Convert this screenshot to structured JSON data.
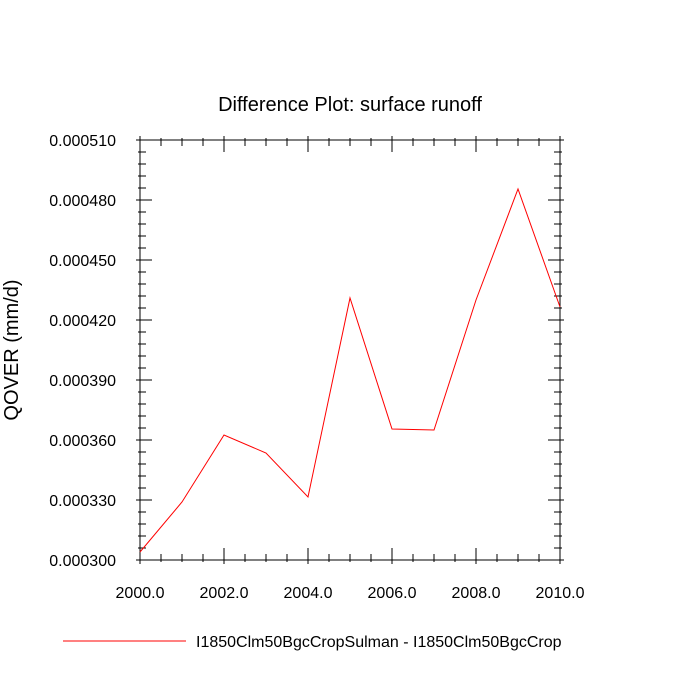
{
  "chart_data": {
    "type": "line",
    "title": "Difference Plot: surface runoff",
    "xlabel": "",
    "ylabel": "QOVER  (mm/d)",
    "xlim": [
      2000.0,
      2010.0
    ],
    "ylim": [
      0.0003,
      0.00051
    ],
    "x_ticks": [
      2000.0,
      2002.0,
      2004.0,
      2006.0,
      2008.0,
      2010.0
    ],
    "x_tick_labels": [
      "2000.0",
      "2002.0",
      "2004.0",
      "2006.0",
      "2008.0",
      "2010.0"
    ],
    "y_ticks": [
      0.0003,
      0.00033,
      0.00036,
      0.00039,
      0.00042,
      0.00045,
      0.00048,
      0.00051
    ],
    "y_tick_labels": [
      "0.000300",
      "0.000330",
      "0.000360",
      "0.000390",
      "0.000420",
      "0.000450",
      "0.000480",
      "0.000510"
    ],
    "grid": false,
    "legend_position": "bottom",
    "series": [
      {
        "name": "I1850Clm50BgcCropSulman - I1850Clm50BgcCrop",
        "color": "#ff0000",
        "x": [
          2000,
          2001,
          2002,
          2003,
          2004,
          2005,
          2006,
          2007,
          2008,
          2009,
          2010
        ],
        "y": [
          0.000304,
          0.000329,
          0.0003625,
          0.0003535,
          0.0003315,
          0.000431,
          0.0003655,
          0.000365,
          0.00043,
          0.0004855,
          0.0004265
        ]
      }
    ]
  }
}
